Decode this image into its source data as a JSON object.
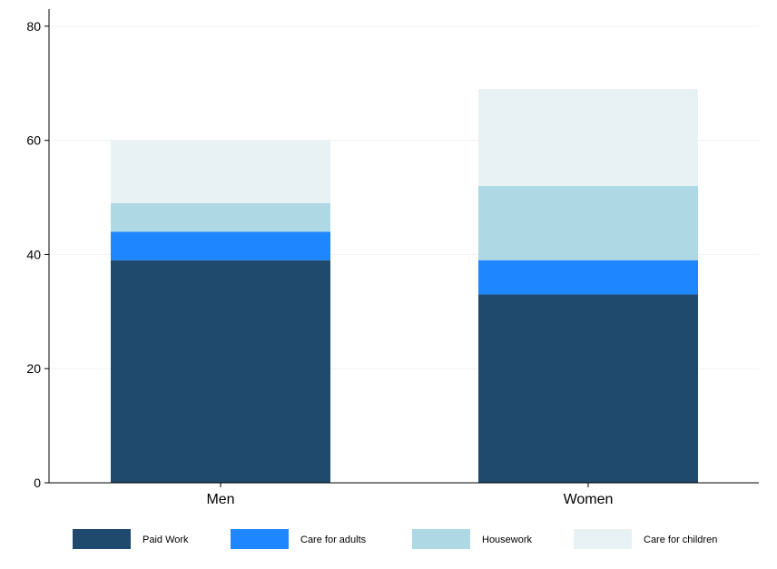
{
  "chart_data": {
    "type": "bar",
    "stacked": true,
    "categories": [
      "Men",
      "Women"
    ],
    "series": [
      {
        "name": "Paid Work",
        "color": "#1f4a6e",
        "values": [
          39,
          33
        ]
      },
      {
        "name": "Care for adults",
        "color": "#1e86ff",
        "values": [
          5,
          6
        ]
      },
      {
        "name": "Housework",
        "color": "#add8e4",
        "values": [
          5,
          13
        ]
      },
      {
        "name": "Care for children",
        "color": "#e8f1f3",
        "values": [
          11,
          17
        ]
      }
    ],
    "title": "",
    "xlabel": "",
    "ylabel": "",
    "ylim": [
      0,
      83
    ],
    "yticks": [
      0,
      20,
      40,
      60,
      80
    ],
    "grid": true,
    "legend_position": "bottom"
  }
}
